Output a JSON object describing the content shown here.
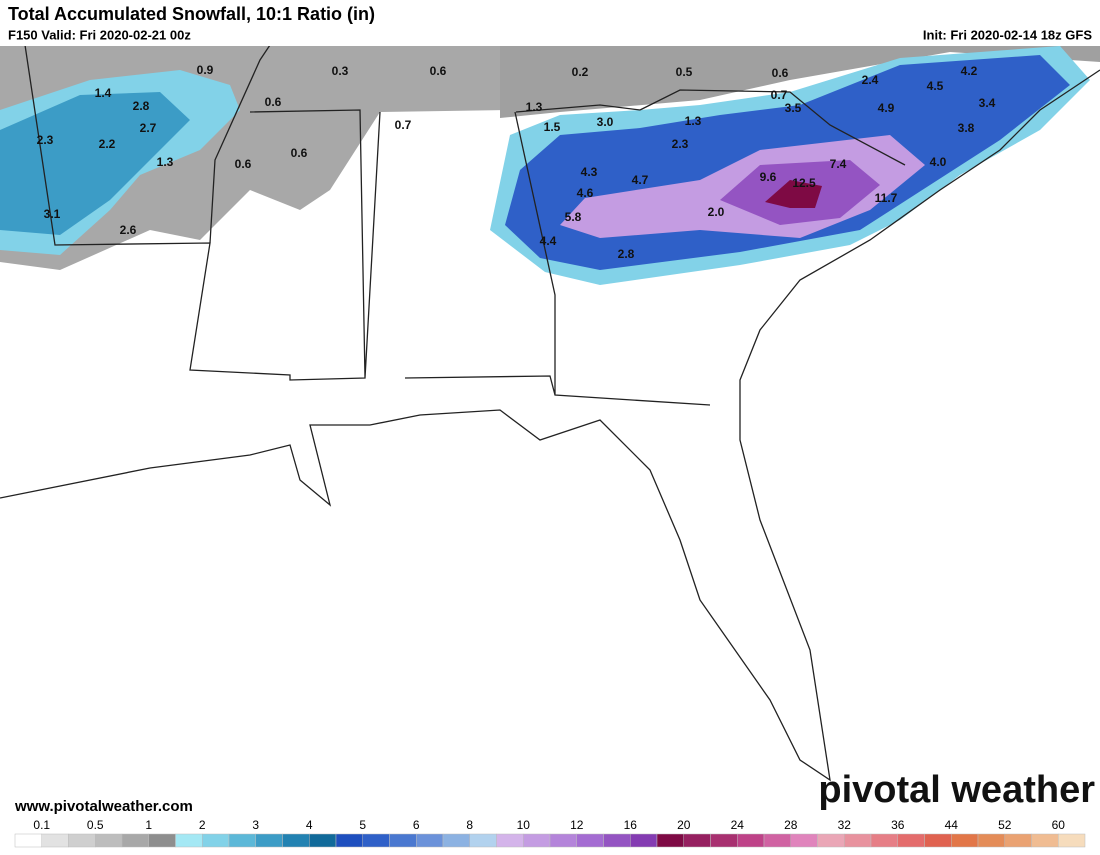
{
  "header": {
    "title": "Total Accumulated Snowfall, 10:1 Ratio (in)",
    "valid": "F150 Valid: Fri 2020-02-21 00z",
    "init": "Init: Fri 2020-02-14 18z GFS"
  },
  "map": {
    "labels": [
      "0.9",
      "0.3",
      "0.6",
      "0.2",
      "0.5",
      "0.6",
      "1.4",
      "2.8",
      "0.6",
      "0.7",
      "2.4",
      "4.2",
      "4.5",
      "2.3",
      "2.7",
      "2.2",
      "1.3",
      "1.5",
      "3.0",
      "1.3",
      "3.5",
      "4.9",
      "3.4",
      "3.8",
      "0.7",
      "0.6",
      "0.6",
      "2.3",
      "1.3",
      "4.3",
      "4.7",
      "4.6",
      "9.6",
      "7.4",
      "12.5",
      "4.0",
      "11.7",
      "3.1",
      "5.8",
      "2.0",
      "2.6",
      "4.4",
      "2.8"
    ]
  },
  "footer": {
    "url": "www.pivotalweather.com",
    "brand": "pivotal weather"
  },
  "legend": {
    "ticks": [
      "0.1",
      "0.5",
      "1",
      "2",
      "3",
      "4",
      "5",
      "6",
      "8",
      "10",
      "12",
      "16",
      "20",
      "24",
      "28",
      "32",
      "36",
      "44",
      "52",
      "60"
    ],
    "colors": [
      "#ffffff",
      "#e2e2e2",
      "#cfcfcf",
      "#bdbdbd",
      "#a8a8a8",
      "#8e8e8e",
      "#a4e8f4",
      "#82d2e8",
      "#5cb8d8",
      "#3c9cc6",
      "#2282b2",
      "#116a9a",
      "#1e4fbf",
      "#2f60c8",
      "#4a78d0",
      "#6b92da",
      "#8cb2e2",
      "#b2d2ee",
      "#d4b4ea",
      "#c49ce2",
      "#b484da",
      "#a46cd2",
      "#9454c2",
      "#843cb2",
      "#7e0a44",
      "#962060",
      "#a83070",
      "#be4288",
      "#d062a2",
      "#e084bc",
      "#eaa6b6",
      "#e8929e",
      "#e67e86",
      "#e46c6c",
      "#e06250",
      "#e27648",
      "#e48c58",
      "#eaa272",
      "#f0bc92",
      "#f6dcbc"
    ]
  }
}
